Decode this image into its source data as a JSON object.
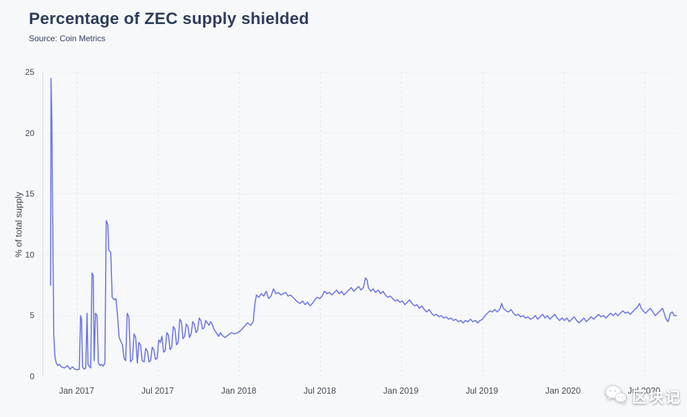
{
  "header": {
    "title": "Percentage of ZEC supply shielded",
    "source": "Source: Coin Metrics"
  },
  "watermark": {
    "text": "区块记",
    "icon": "wechat-icon"
  },
  "colors": {
    "line": "#6b74e4",
    "title": "#2d3e5c",
    "background": "#f7f8f9"
  },
  "chart_data": {
    "type": "line",
    "title": "Percentage of ZEC supply shielded",
    "subtitle": "Source: Coin Metrics",
    "xlabel": "",
    "ylabel": "% of total supply",
    "xlim": [
      2016.79,
      2020.71
    ],
    "ylim": [
      0,
      25
    ],
    "yticks": [
      0,
      5,
      10,
      15,
      20,
      25
    ],
    "xticks": [
      {
        "value": 2017.0,
        "label": "Jan 2017"
      },
      {
        "value": 2017.5,
        "label": "Jul 2017"
      },
      {
        "value": 2018.0,
        "label": "Jan 2018"
      },
      {
        "value": 2018.5,
        "label": "Jul 2018"
      },
      {
        "value": 2019.0,
        "label": "Jan 2019"
      },
      {
        "value": 2019.5,
        "label": "Jul 2019"
      },
      {
        "value": 2020.0,
        "label": "Jan 2020"
      },
      {
        "value": 2020.5,
        "label": "Jul 2020"
      }
    ],
    "grid": "vertical-dashed",
    "legend": "none",
    "series": [
      {
        "name": "% of ZEC supply shielded",
        "points": [
          [
            2016.835,
            7.5
          ],
          [
            2016.838,
            24.5
          ],
          [
            2016.843,
            21.0
          ],
          [
            2016.848,
            13.0
          ],
          [
            2016.855,
            3.4
          ],
          [
            2016.862,
            1.6
          ],
          [
            2016.87,
            1.1
          ],
          [
            2016.88,
            0.9
          ],
          [
            2016.89,
            1.0
          ],
          [
            2016.9,
            0.8
          ],
          [
            2016.92,
            0.7
          ],
          [
            2016.94,
            0.9
          ],
          [
            2016.955,
            0.6
          ],
          [
            2016.97,
            0.8
          ],
          [
            2016.985,
            0.6
          ],
          [
            2017.0,
            0.55
          ],
          [
            2017.012,
            0.6
          ],
          [
            2017.02,
            5.0
          ],
          [
            2017.026,
            4.7
          ],
          [
            2017.032,
            0.8
          ],
          [
            2017.042,
            0.6
          ],
          [
            2017.052,
            0.7
          ],
          [
            2017.06,
            5.2
          ],
          [
            2017.066,
            1.0
          ],
          [
            2017.075,
            0.8
          ],
          [
            2017.083,
            0.7
          ],
          [
            2017.09,
            8.5
          ],
          [
            2017.098,
            8.3
          ],
          [
            2017.104,
            1.3
          ],
          [
            2017.112,
            5.2
          ],
          [
            2017.122,
            5.0
          ],
          [
            2017.13,
            1.1
          ],
          [
            2017.14,
            0.9
          ],
          [
            2017.15,
            1.0
          ],
          [
            2017.16,
            0.85
          ],
          [
            2017.17,
            1.1
          ],
          [
            2017.178,
            12.8
          ],
          [
            2017.188,
            12.5
          ],
          [
            2017.194,
            10.4
          ],
          [
            2017.206,
            10.2
          ],
          [
            2017.215,
            6.5
          ],
          [
            2017.228,
            6.3
          ],
          [
            2017.238,
            6.4
          ],
          [
            2017.248,
            5.0
          ],
          [
            2017.258,
            3.2
          ],
          [
            2017.268,
            2.9
          ],
          [
            2017.278,
            2.6
          ],
          [
            2017.288,
            1.5
          ],
          [
            2017.298,
            1.3
          ],
          [
            2017.308,
            5.2
          ],
          [
            2017.318,
            4.9
          ],
          [
            2017.328,
            1.2
          ],
          [
            2017.34,
            1.4
          ],
          [
            2017.35,
            3.5
          ],
          [
            2017.36,
            3.2
          ],
          [
            2017.37,
            1.1
          ],
          [
            2017.38,
            2.8
          ],
          [
            2017.39,
            2.6
          ],
          [
            2017.4,
            1.3
          ],
          [
            2017.412,
            1.2
          ],
          [
            2017.422,
            2.3
          ],
          [
            2017.432,
            2.1
          ],
          [
            2017.442,
            1.2
          ],
          [
            2017.452,
            1.3
          ],
          [
            2017.462,
            2.4
          ],
          [
            2017.472,
            2.2
          ],
          [
            2017.482,
            1.4
          ],
          [
            2017.492,
            1.5
          ],
          [
            2017.502,
            3.0
          ],
          [
            2017.512,
            2.8
          ],
          [
            2017.522,
            3.3
          ],
          [
            2017.532,
            2.0
          ],
          [
            2017.542,
            2.1
          ],
          [
            2017.552,
            3.6
          ],
          [
            2017.562,
            3.4
          ],
          [
            2017.572,
            2.2
          ],
          [
            2017.582,
            2.4
          ],
          [
            2017.592,
            4.1
          ],
          [
            2017.602,
            3.9
          ],
          [
            2017.612,
            2.6
          ],
          [
            2017.622,
            2.8
          ],
          [
            2017.632,
            4.7
          ],
          [
            2017.642,
            4.5
          ],
          [
            2017.652,
            3.1
          ],
          [
            2017.662,
            3.3
          ],
          [
            2017.672,
            4.3
          ],
          [
            2017.682,
            4.1
          ],
          [
            2017.692,
            3.2
          ],
          [
            2017.702,
            3.5
          ],
          [
            2017.712,
            4.5
          ],
          [
            2017.722,
            4.3
          ],
          [
            2017.732,
            3.6
          ],
          [
            2017.742,
            3.8
          ],
          [
            2017.752,
            4.8
          ],
          [
            2017.762,
            4.6
          ],
          [
            2017.772,
            3.9
          ],
          [
            2017.782,
            4.0
          ],
          [
            2017.792,
            4.6
          ],
          [
            2017.802,
            4.4
          ],
          [
            2017.812,
            4.2
          ],
          [
            2017.822,
            4.5
          ],
          [
            2017.832,
            4.3
          ],
          [
            2017.842,
            3.9
          ],
          [
            2017.852,
            3.7
          ],
          [
            2017.862,
            3.5
          ],
          [
            2017.872,
            3.3
          ],
          [
            2017.882,
            3.6
          ],
          [
            2017.892,
            3.4
          ],
          [
            2017.91,
            3.2
          ],
          [
            2017.93,
            3.4
          ],
          [
            2017.95,
            3.6
          ],
          [
            2017.97,
            3.5
          ],
          [
            2017.99,
            3.6
          ],
          [
            2018.01,
            3.8
          ],
          [
            2018.03,
            4.1
          ],
          [
            2018.05,
            4.4
          ],
          [
            2018.07,
            4.2
          ],
          [
            2018.085,
            4.5
          ],
          [
            2018.095,
            5.9
          ],
          [
            2018.105,
            6.7
          ],
          [
            2018.12,
            6.5
          ],
          [
            2018.135,
            6.8
          ],
          [
            2018.15,
            6.6
          ],
          [
            2018.165,
            7.0
          ],
          [
            2018.18,
            6.4
          ],
          [
            2018.195,
            6.6
          ],
          [
            2018.21,
            7.2
          ],
          [
            2018.225,
            6.8
          ],
          [
            2018.24,
            6.9
          ],
          [
            2018.255,
            6.7
          ],
          [
            2018.27,
            6.8
          ],
          [
            2018.285,
            6.9
          ],
          [
            2018.3,
            6.6
          ],
          [
            2018.315,
            6.7
          ],
          [
            2018.33,
            6.5
          ],
          [
            2018.345,
            6.3
          ],
          [
            2018.36,
            6.1
          ],
          [
            2018.375,
            6.0
          ],
          [
            2018.39,
            6.2
          ],
          [
            2018.405,
            5.9
          ],
          [
            2018.42,
            6.1
          ],
          [
            2018.435,
            5.8
          ],
          [
            2018.45,
            6.0
          ],
          [
            2018.465,
            6.3
          ],
          [
            2018.48,
            6.5
          ],
          [
            2018.495,
            6.4
          ],
          [
            2018.51,
            6.6
          ],
          [
            2018.525,
            7.0
          ],
          [
            2018.54,
            6.8
          ],
          [
            2018.555,
            6.9
          ],
          [
            2018.57,
            6.7
          ],
          [
            2018.585,
            6.9
          ],
          [
            2018.6,
            7.1
          ],
          [
            2018.615,
            6.8
          ],
          [
            2018.63,
            7.0
          ],
          [
            2018.645,
            6.7
          ],
          [
            2018.66,
            6.9
          ],
          [
            2018.675,
            7.1
          ],
          [
            2018.69,
            7.3
          ],
          [
            2018.705,
            7.0
          ],
          [
            2018.72,
            7.2
          ],
          [
            2018.735,
            7.4
          ],
          [
            2018.75,
            7.1
          ],
          [
            2018.765,
            7.3
          ],
          [
            2018.778,
            8.1
          ],
          [
            2018.788,
            7.9
          ],
          [
            2018.795,
            7.3
          ],
          [
            2018.81,
            7.0
          ],
          [
            2018.825,
            7.2
          ],
          [
            2018.84,
            6.9
          ],
          [
            2018.855,
            7.1
          ],
          [
            2018.87,
            6.8
          ],
          [
            2018.885,
            7.0
          ],
          [
            2018.9,
            6.7
          ],
          [
            2018.915,
            6.5
          ],
          [
            2018.93,
            6.6
          ],
          [
            2018.945,
            6.4
          ],
          [
            2018.96,
            6.2
          ],
          [
            2018.975,
            6.3
          ],
          [
            2018.99,
            6.1
          ],
          [
            2019.005,
            6.2
          ],
          [
            2019.02,
            5.9
          ],
          [
            2019.035,
            6.1
          ],
          [
            2019.05,
            6.3
          ],
          [
            2019.065,
            6.0
          ],
          [
            2019.08,
            5.8
          ],
          [
            2019.095,
            5.9
          ],
          [
            2019.11,
            5.6
          ],
          [
            2019.125,
            5.8
          ],
          [
            2019.14,
            5.5
          ],
          [
            2019.155,
            5.3
          ],
          [
            2019.17,
            5.5
          ],
          [
            2019.185,
            5.2
          ],
          [
            2019.2,
            5.0
          ],
          [
            2019.215,
            5.1
          ],
          [
            2019.23,
            4.9
          ],
          [
            2019.245,
            5.0
          ],
          [
            2019.26,
            4.8
          ],
          [
            2019.275,
            4.9
          ],
          [
            2019.29,
            4.7
          ],
          [
            2019.305,
            4.8
          ],
          [
            2019.32,
            4.6
          ],
          [
            2019.335,
            4.7
          ],
          [
            2019.35,
            4.5
          ],
          [
            2019.365,
            4.6
          ],
          [
            2019.38,
            4.4
          ],
          [
            2019.395,
            4.6
          ],
          [
            2019.41,
            4.5
          ],
          [
            2019.425,
            4.7
          ],
          [
            2019.44,
            4.5
          ],
          [
            2019.455,
            4.6
          ],
          [
            2019.47,
            4.4
          ],
          [
            2019.485,
            4.6
          ],
          [
            2019.5,
            4.7
          ],
          [
            2019.515,
            5.0
          ],
          [
            2019.53,
            5.2
          ],
          [
            2019.545,
            5.4
          ],
          [
            2019.56,
            5.3
          ],
          [
            2019.575,
            5.5
          ],
          [
            2019.59,
            5.3
          ],
          [
            2019.605,
            5.5
          ],
          [
            2019.618,
            6.0
          ],
          [
            2019.628,
            5.6
          ],
          [
            2019.645,
            5.4
          ],
          [
            2019.66,
            5.3
          ],
          [
            2019.675,
            5.5
          ],
          [
            2019.69,
            5.2
          ],
          [
            2019.705,
            5.0
          ],
          [
            2019.72,
            5.1
          ],
          [
            2019.735,
            4.9
          ],
          [
            2019.75,
            5.0
          ],
          [
            2019.765,
            4.8
          ],
          [
            2019.78,
            4.9
          ],
          [
            2019.795,
            4.7
          ],
          [
            2019.81,
            4.8
          ],
          [
            2019.825,
            5.0
          ],
          [
            2019.84,
            4.7
          ],
          [
            2019.855,
            4.9
          ],
          [
            2019.87,
            5.1
          ],
          [
            2019.885,
            4.8
          ],
          [
            2019.9,
            5.0
          ],
          [
            2019.915,
            4.7
          ],
          [
            2019.93,
            4.9
          ],
          [
            2019.945,
            5.1
          ],
          [
            2019.96,
            4.8
          ],
          [
            2019.975,
            4.6
          ],
          [
            2019.99,
            4.8
          ],
          [
            2020.005,
            4.6
          ],
          [
            2020.02,
            4.8
          ],
          [
            2020.035,
            4.5
          ],
          [
            2020.05,
            4.7
          ],
          [
            2020.065,
            4.9
          ],
          [
            2020.08,
            4.6
          ],
          [
            2020.095,
            4.4
          ],
          [
            2020.11,
            4.6
          ],
          [
            2020.125,
            4.8
          ],
          [
            2020.14,
            4.5
          ],
          [
            2020.155,
            4.7
          ],
          [
            2020.17,
            4.9
          ],
          [
            2020.185,
            4.7
          ],
          [
            2020.2,
            4.9
          ],
          [
            2020.215,
            5.1
          ],
          [
            2020.23,
            4.9
          ],
          [
            2020.245,
            5.0
          ],
          [
            2020.26,
            4.8
          ],
          [
            2020.275,
            5.0
          ],
          [
            2020.29,
            5.2
          ],
          [
            2020.305,
            5.0
          ],
          [
            2020.32,
            5.2
          ],
          [
            2020.335,
            5.0
          ],
          [
            2020.35,
            5.2
          ],
          [
            2020.365,
            5.4
          ],
          [
            2020.38,
            5.2
          ],
          [
            2020.395,
            5.3
          ],
          [
            2020.41,
            5.1
          ],
          [
            2020.425,
            5.3
          ],
          [
            2020.44,
            5.5
          ],
          [
            2020.455,
            5.7
          ],
          [
            2020.468,
            6.0
          ],
          [
            2020.478,
            5.6
          ],
          [
            2020.49,
            5.4
          ],
          [
            2020.505,
            5.2
          ],
          [
            2020.52,
            5.4
          ],
          [
            2020.535,
            5.6
          ],
          [
            2020.55,
            5.3
          ],
          [
            2020.565,
            5.0
          ],
          [
            2020.58,
            5.2
          ],
          [
            2020.595,
            5.4
          ],
          [
            2020.61,
            5.6
          ],
          [
            2020.62,
            5.2
          ],
          [
            2020.632,
            4.7
          ],
          [
            2020.645,
            4.5
          ],
          [
            2020.658,
            5.2
          ],
          [
            2020.67,
            5.3
          ],
          [
            2020.682,
            5.0
          ],
          [
            2020.695,
            5.0
          ]
        ]
      }
    ]
  }
}
